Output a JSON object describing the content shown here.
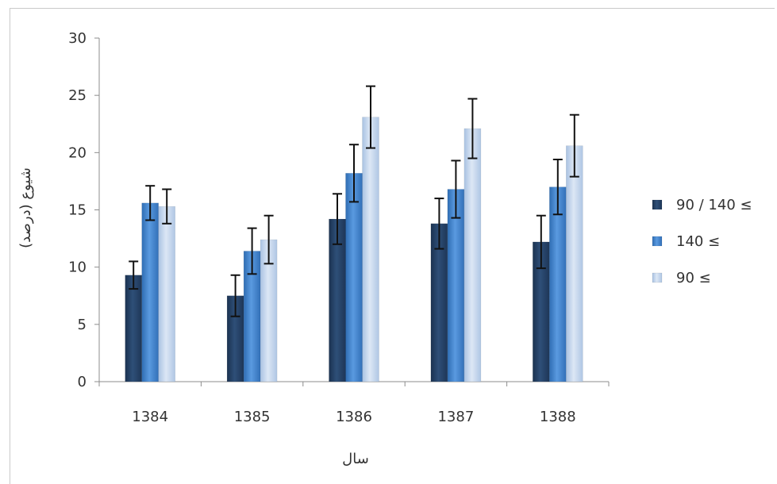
{
  "chart_data": {
    "type": "bar",
    "title": "",
    "xlabel": "سال",
    "ylabel": "شیوع (درصد)",
    "ylim": [
      0,
      30
    ],
    "yticks": [
      0,
      5,
      10,
      15,
      20,
      25,
      30
    ],
    "categories": [
      "1384",
      "1385",
      "1386",
      "1387",
      "1388"
    ],
    "grid": false,
    "legend_position": "right",
    "series": [
      {
        "name": "90 / 140 ≤",
        "color": "#243f60",
        "values": [
          9.3,
          7.5,
          14.2,
          13.8,
          12.2
        ],
        "error": [
          1.2,
          1.8,
          2.2,
          2.2,
          2.3
        ]
      },
      {
        "name": "140 ≤",
        "color": "#3a7cc4",
        "values": [
          15.6,
          11.4,
          18.2,
          16.8,
          17.0
        ],
        "error": [
          1.5,
          2.0,
          2.5,
          2.5,
          2.4
        ]
      },
      {
        "name": "90 ≤",
        "color": "#c0d3ea",
        "values": [
          15.3,
          12.4,
          23.1,
          22.1,
          20.6
        ],
        "error": [
          1.5,
          2.1,
          2.7,
          2.6,
          2.7
        ]
      }
    ]
  }
}
